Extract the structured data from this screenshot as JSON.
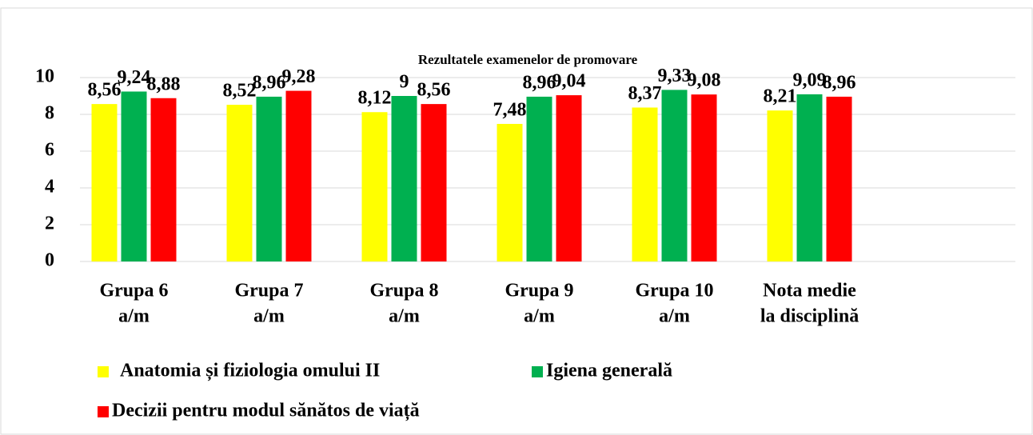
{
  "chart_data": {
    "type": "bar",
    "title": "Rezultatele examenelor de promovare",
    "categories": [
      [
        "Grupa 6",
        "a/m"
      ],
      [
        "Grupa 7",
        "a/m"
      ],
      [
        "Grupa 8",
        "a/m"
      ],
      [
        "Grupa 9",
        "a/m"
      ],
      [
        "Grupa 10",
        "a/m"
      ],
      [
        "Nota medie",
        "la disciplină"
      ]
    ],
    "series": [
      {
        "name": "Anatomia și fiziologia omului II",
        "color": "#ffff00",
        "values": [
          8.56,
          8.52,
          8.12,
          7.48,
          8.37,
          8.21
        ],
        "value_labels": [
          "8,56",
          "8,52",
          "8,12",
          "7,48",
          "8,37",
          "8,21"
        ]
      },
      {
        "name": "Igiena generală",
        "color": "#00b050",
        "values": [
          9.24,
          8.96,
          9,
          8.96,
          9.33,
          9.09
        ],
        "value_labels": [
          "9,24",
          "8,96",
          "9",
          "8,96",
          "9,33",
          "9,09"
        ]
      },
      {
        "name": "Decizii pentru modul sănătos de viață",
        "color": "#ff0000",
        "values": [
          8.88,
          9.28,
          8.56,
          9.04,
          9.08,
          8.96
        ],
        "value_labels": [
          "8,88",
          "9,28",
          "8,56",
          "9,04",
          "9,08",
          "8,96"
        ]
      }
    ],
    "ylim": [
      0,
      10
    ],
    "yticks": [
      0,
      2,
      4,
      6,
      8,
      10
    ],
    "grid": true
  }
}
